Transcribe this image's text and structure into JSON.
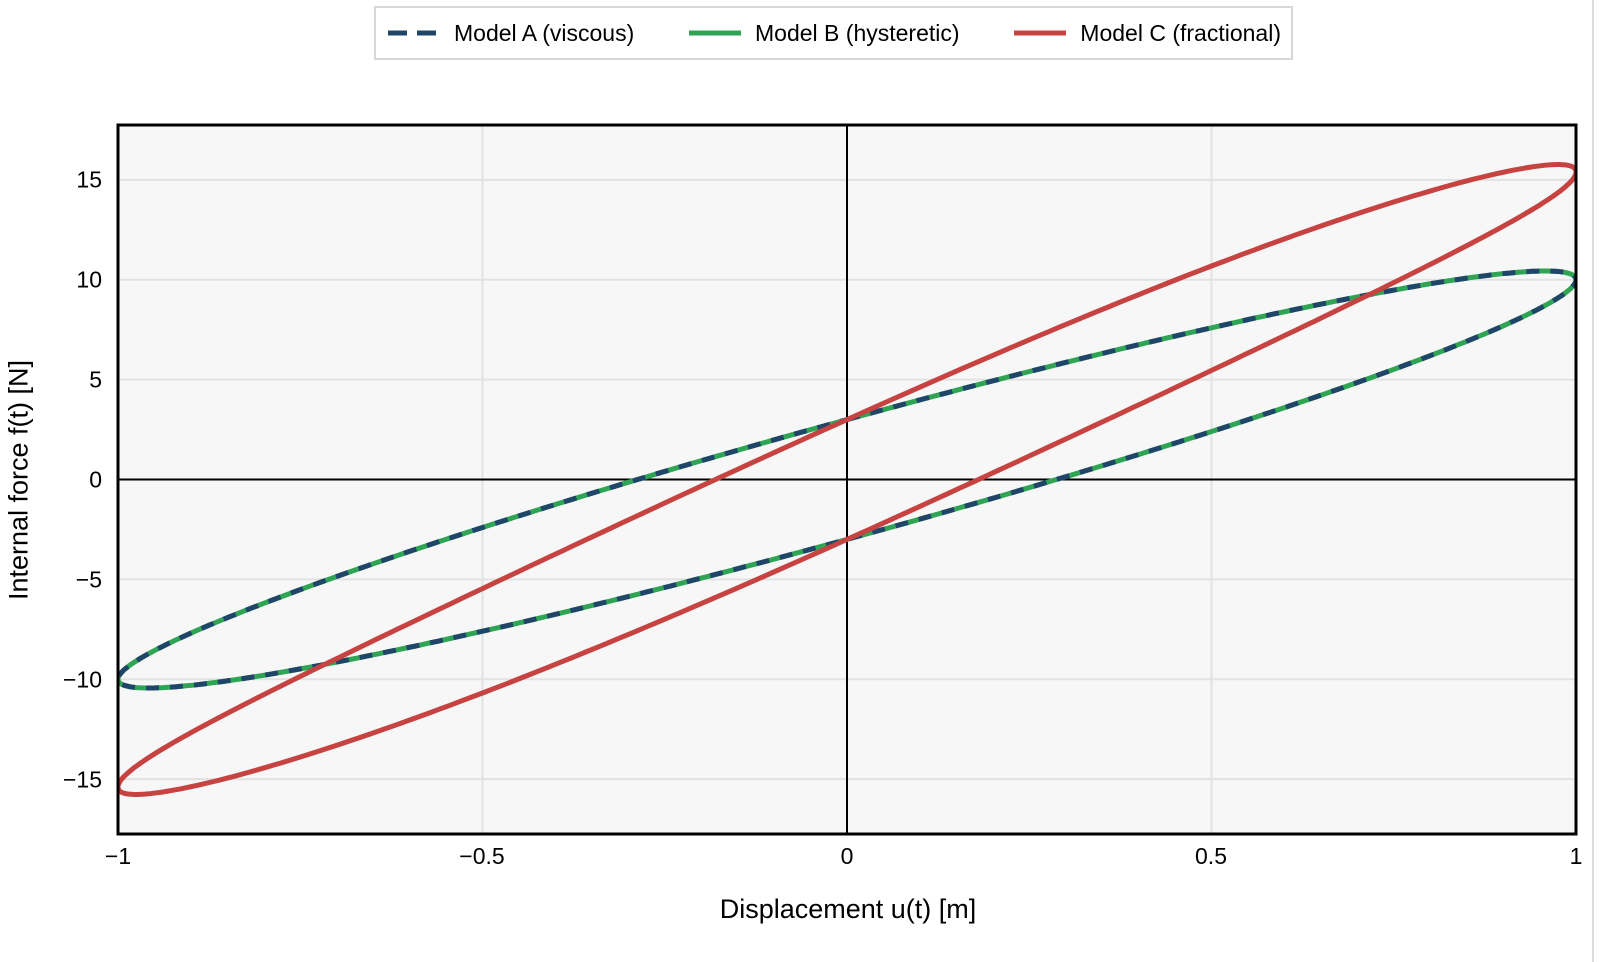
{
  "style": {
    "background": "#ffffff",
    "plot_background": "#f7f7f7",
    "plot_border_color": "#000000",
    "grid_color": "#e2e2e2",
    "zero_line_color": "#000000",
    "text_color": "#000000",
    "legend_border_color": "#d8d8d8"
  },
  "legend": {
    "items": [
      {
        "label": "Model A (viscous)",
        "color": "#1f4668",
        "line_style": "dashed"
      },
      {
        "label": "Model B (hysteretic)",
        "color": "#2fa455",
        "line_style": "solid"
      },
      {
        "label": "Model C (fractional)",
        "color": "#c64341",
        "line_style": "solid"
      }
    ]
  },
  "chart_data": {
    "type": "line",
    "subtype": "hysteresis-loops",
    "title": "",
    "xlabel": "Displacement u(t) [m]",
    "ylabel": "Internal force f(t) [N]",
    "xlim": [
      -1,
      1
    ],
    "ylim": [
      -17.75,
      17.75
    ],
    "x_ticks": [
      -1,
      -0.5,
      0,
      0.5,
      1
    ],
    "x_tick_labels": [
      "−1",
      "−0.5",
      "0",
      "0.5",
      "1"
    ],
    "y_ticks": [
      15,
      10,
      5,
      0,
      -5,
      -10,
      -15
    ],
    "y_tick_labels": [
      "15",
      "10",
      "5",
      "0",
      "−5",
      "−10",
      "−15"
    ],
    "grid": true,
    "legend_position": "top-center",
    "series": [
      {
        "name": "Model A (viscous)",
        "color": "#1f4668",
        "line_width": 5,
        "dash_pattern": [
          13,
          11
        ],
        "loop_model": {
          "linear_stiffness": 10,
          "cubic_stiffness": 0,
          "half_width_at_u0": 3,
          "exponent": 0.5
        },
        "key_values": {
          "f_at_u0": "±3",
          "f_at_u_extreme": 10,
          "f_peak": 10.4
        }
      },
      {
        "name": "Model B (hysteretic)",
        "color": "#2fa455",
        "line_width": 5,
        "dash_pattern": null,
        "loop_model": {
          "linear_stiffness": 10,
          "cubic_stiffness": 0,
          "half_width_at_u0": 3,
          "exponent": 0.5
        },
        "key_values": {
          "f_at_u0": "±3",
          "f_at_u_extreme": 10,
          "f_peak": 10.4
        }
      },
      {
        "name": "Model C (fractional)",
        "color": "#c64341",
        "line_width": 5,
        "dash_pattern": null,
        "loop_model": {
          "linear_stiffness": 16.4,
          "cubic_stiffness": -1,
          "half_width_at_u0": 3,
          "exponent": 0.48
        },
        "key_values": {
          "f_at_u0": "±3",
          "f_at_u_extreme": 15.4,
          "f_peak": 15.9
        }
      }
    ]
  }
}
